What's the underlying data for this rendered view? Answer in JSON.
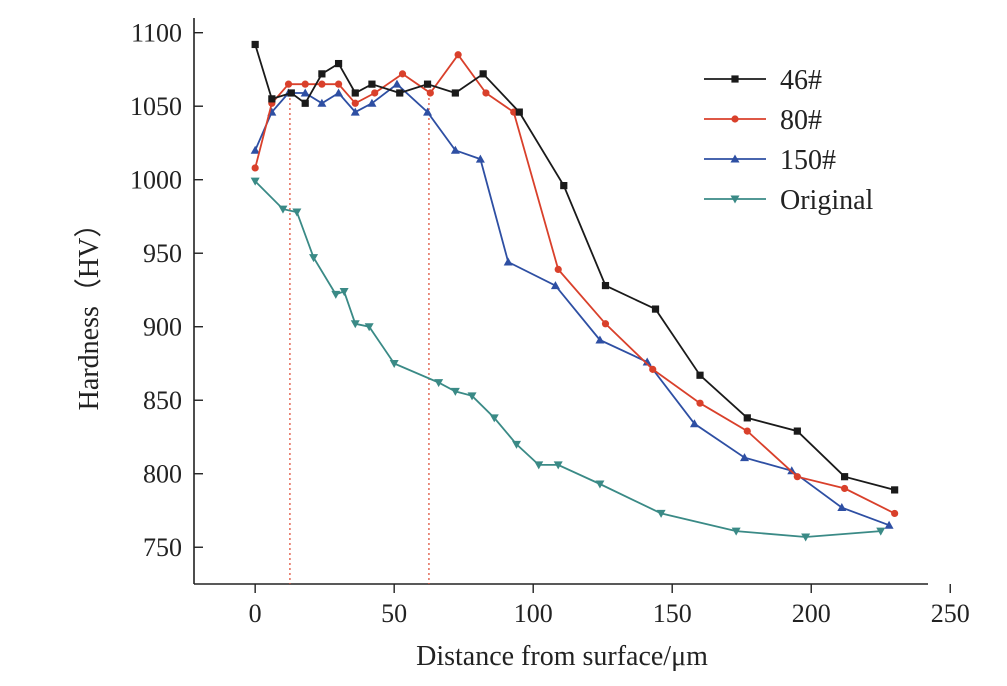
{
  "chart_data": {
    "type": "line",
    "title": "",
    "xlabel": "Distance from surface/μm",
    "ylabel": "Hardness（HV）",
    "xlim": [
      -22,
      242
    ],
    "ylim": [
      725,
      1110
    ],
    "xticks": [
      0,
      50,
      100,
      150,
      200,
      250
    ],
    "yticks": [
      750,
      800,
      850,
      900,
      950,
      1000,
      1050,
      1100
    ],
    "grid": false,
    "legend_position": "top-right",
    "reference_lines_x": [
      12.5,
      62.5
    ],
    "reference_line_color": "#e0533c",
    "series": [
      {
        "name": "46#",
        "color": "#1a1a1a",
        "marker": "square",
        "points": [
          [
            0,
            1092
          ],
          [
            6,
            1055
          ],
          [
            13,
            1059
          ],
          [
            18,
            1052
          ],
          [
            24,
            1072
          ],
          [
            30,
            1079
          ],
          [
            36,
            1059
          ],
          [
            42,
            1065
          ],
          [
            52,
            1059
          ],
          [
            62,
            1065
          ],
          [
            72,
            1059
          ],
          [
            82,
            1072
          ],
          [
            95,
            1046
          ],
          [
            111,
            996
          ],
          [
            126,
            928
          ],
          [
            144,
            912
          ],
          [
            160,
            867
          ],
          [
            177,
            838
          ],
          [
            195,
            829
          ],
          [
            212,
            798
          ],
          [
            230,
            789
          ]
        ]
      },
      {
        "name": "80#",
        "color": "#d9402b",
        "marker": "circle",
        "points": [
          [
            0,
            1008
          ],
          [
            6,
            1052
          ],
          [
            12,
            1065
          ],
          [
            18,
            1065
          ],
          [
            24,
            1065
          ],
          [
            30,
            1065
          ],
          [
            36,
            1052
          ],
          [
            43,
            1059
          ],
          [
            53,
            1072
          ],
          [
            63,
            1059
          ],
          [
            73,
            1085
          ],
          [
            83,
            1059
          ],
          [
            93,
            1046
          ],
          [
            109,
            939
          ],
          [
            126,
            902
          ],
          [
            143,
            871
          ],
          [
            160,
            848
          ],
          [
            177,
            829
          ],
          [
            195,
            798
          ],
          [
            212,
            790
          ],
          [
            230,
            773
          ]
        ]
      },
      {
        "name": "150#",
        "color": "#2e4fa3",
        "marker": "triangle-up",
        "points": [
          [
            0,
            1020
          ],
          [
            6,
            1046
          ],
          [
            12,
            1059
          ],
          [
            18,
            1059
          ],
          [
            24,
            1052
          ],
          [
            30,
            1059
          ],
          [
            36,
            1046
          ],
          [
            42,
            1052
          ],
          [
            51,
            1065
          ],
          [
            62,
            1046
          ],
          [
            72,
            1020
          ],
          [
            81,
            1014
          ],
          [
            91,
            944
          ],
          [
            108,
            928
          ],
          [
            124,
            891
          ],
          [
            141,
            876
          ],
          [
            158,
            834
          ],
          [
            176,
            811
          ],
          [
            193,
            802
          ],
          [
            211,
            777
          ],
          [
            228,
            765
          ]
        ]
      },
      {
        "name": "Original",
        "color": "#3a8a86",
        "marker": "triangle-down",
        "points": [
          [
            0,
            999
          ],
          [
            10,
            980
          ],
          [
            15,
            978
          ],
          [
            21,
            947
          ],
          [
            29,
            922
          ],
          [
            32,
            924
          ],
          [
            36,
            902
          ],
          [
            41,
            900
          ],
          [
            50,
            875
          ],
          [
            66,
            862
          ],
          [
            72,
            856
          ],
          [
            78,
            853
          ],
          [
            86,
            838
          ],
          [
            94,
            820
          ],
          [
            102,
            806
          ],
          [
            109,
            806
          ],
          [
            124,
            793
          ],
          [
            146,
            773
          ],
          [
            173,
            761
          ],
          [
            198,
            757
          ],
          [
            225,
            761
          ]
        ]
      }
    ]
  }
}
